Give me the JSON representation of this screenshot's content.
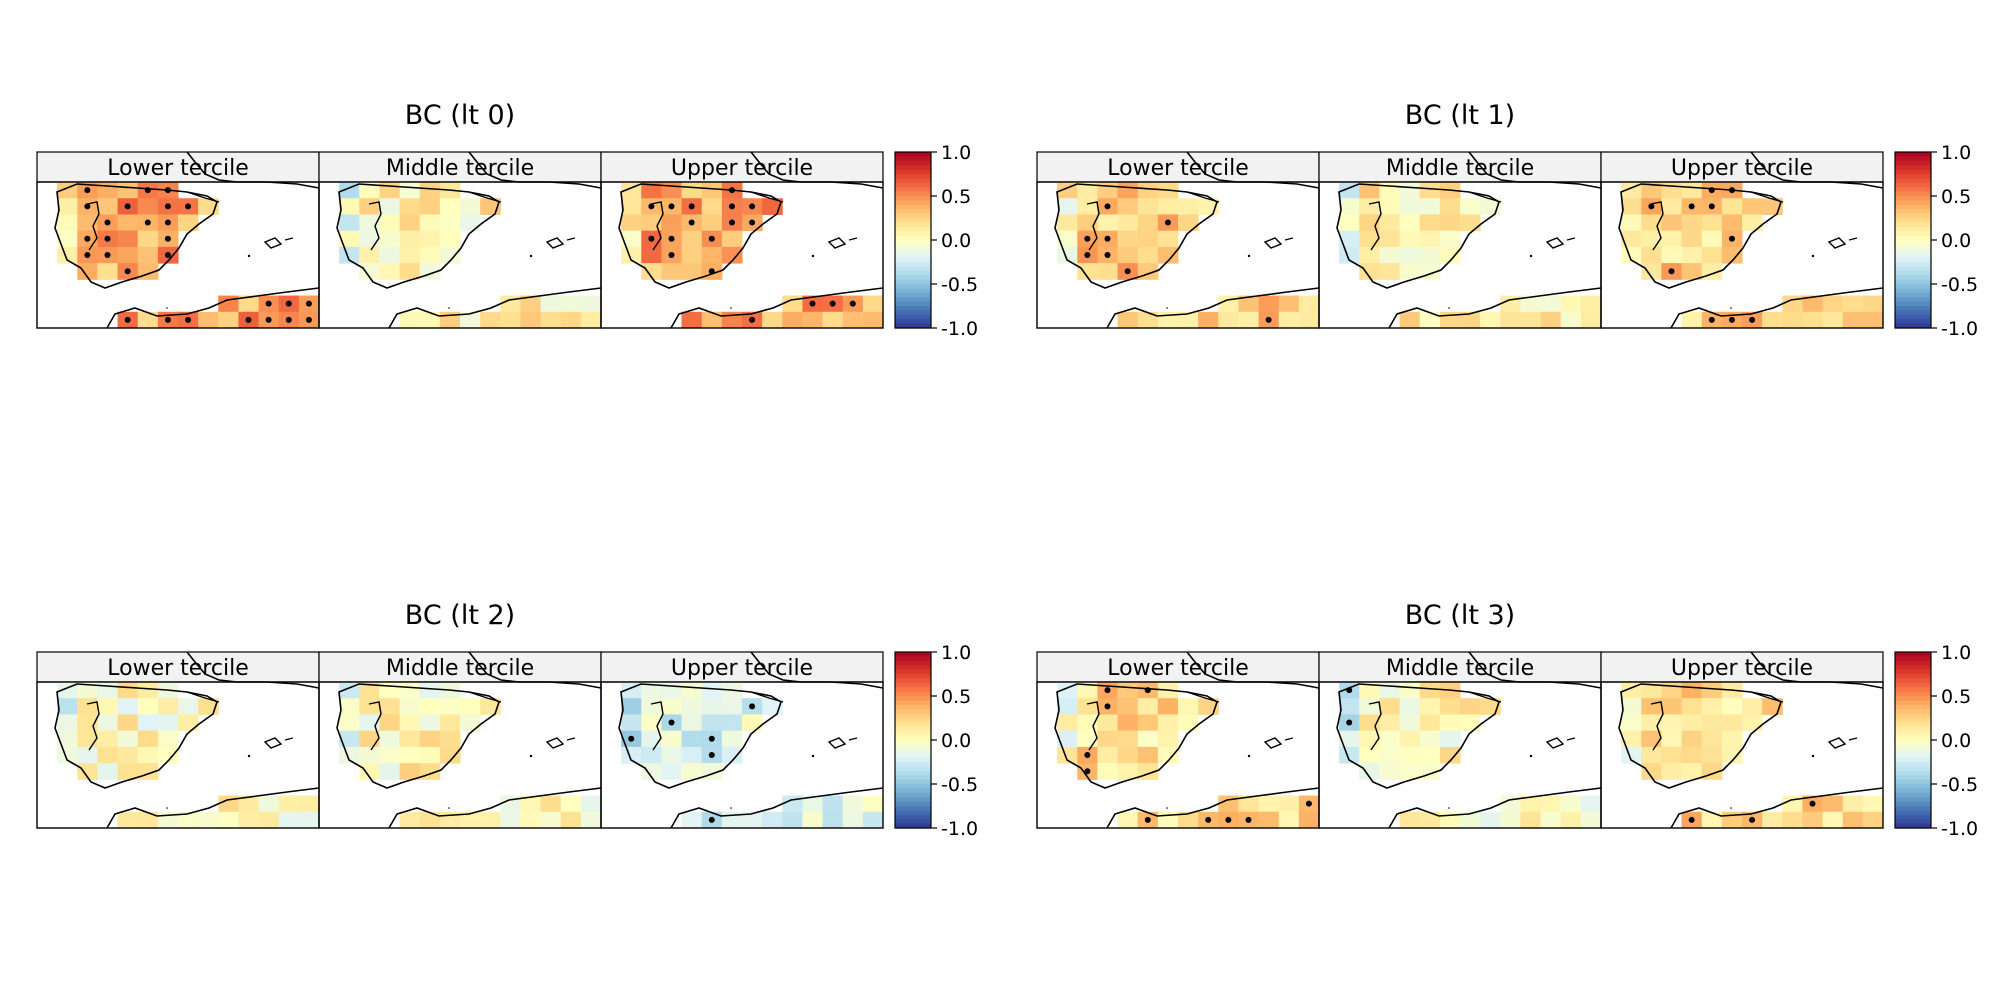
{
  "chart_data": [
    {
      "type": "heatmap",
      "title": "BC (lt 0)",
      "panels": [
        "Lower tercile",
        "Middle tercile",
        "Upper tercile"
      ],
      "colorbar": {
        "range": [
          -1.0,
          1.0
        ],
        "ticks": [
          "1.0",
          "0.5",
          "0.0",
          "-0.5",
          "-1.0"
        ]
      },
      "mean_value": [
        0.42,
        0.08,
        0.4
      ],
      "significant_points": [
        true,
        true,
        true
      ]
    },
    {
      "type": "heatmap",
      "title": "BC (lt 1)",
      "panels": [
        "Lower tercile",
        "Middle tercile",
        "Upper tercile"
      ],
      "colorbar": {
        "range": [
          -1.0,
          1.0
        ],
        "ticks": [
          "1.0",
          "0.5",
          "0.0",
          "-0.5",
          "-1.0"
        ]
      },
      "mean_value": [
        0.3,
        0.12,
        0.25
      ],
      "significant_points": [
        true,
        true,
        true
      ]
    },
    {
      "type": "heatmap",
      "title": "BC (lt 2)",
      "panels": [
        "Lower tercile",
        "Middle tercile",
        "Upper tercile"
      ],
      "colorbar": {
        "range": [
          -1.0,
          1.0
        ],
        "ticks": [
          "1.0",
          "0.5",
          "0.0",
          "-0.5",
          "-1.0"
        ]
      },
      "mean_value": [
        0.02,
        0.05,
        -0.18
      ],
      "significant_points": [
        true,
        true,
        true
      ]
    },
    {
      "type": "heatmap",
      "title": "BC (lt 3)",
      "panels": [
        "Lower tercile",
        "Middle tercile",
        "Upper tercile"
      ],
      "colorbar": {
        "range": [
          -1.0,
          1.0
        ],
        "ticks": [
          "1.0",
          "0.5",
          "0.0",
          "-0.5",
          "-1.0"
        ]
      },
      "mean_value": [
        0.2,
        0.05,
        0.22
      ],
      "significant_points": [
        true,
        true,
        true
      ]
    }
  ],
  "colors": {
    "colormap": [
      "#313695",
      "#4575b4",
      "#74add1",
      "#abd9e9",
      "#e0f3f8",
      "#ffffbf",
      "#fee090",
      "#fdae61",
      "#f46d43",
      "#d73027",
      "#a50026"
    ],
    "strip_background": "#f2f2f2",
    "coastline": "#000000",
    "land_mask": "#ffffff"
  }
}
